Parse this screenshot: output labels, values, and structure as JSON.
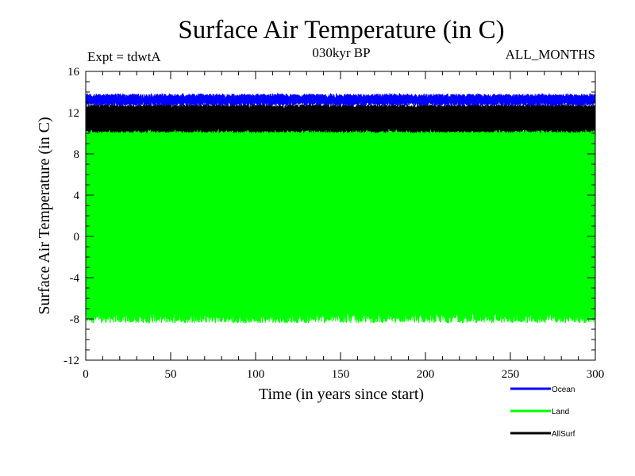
{
  "chart_data": {
    "type": "line",
    "title": "Surface Air Temperature (in C)",
    "subtitle_left": "Expt = tdwtA",
    "subtitle_center": "030kyr BP",
    "subtitle_right": "ALL_MONTHS",
    "xlabel": "Time (in years since start)",
    "ylabel": "Surface Air Temperature (in C)",
    "xlim": [
      0,
      300
    ],
    "ylim": [
      -12,
      16
    ],
    "x_ticks": [
      "0",
      "50",
      "100",
      "150",
      "200",
      "250",
      "300"
    ],
    "y_ticks": [
      "-12",
      "-8",
      "-4",
      "0",
      "4",
      "8",
      "12",
      "16"
    ],
    "series": [
      {
        "name": "Land",
        "color": "#00ff00",
        "monthly_min": -7.8,
        "monthly_max": 10.4,
        "description_range": [
          -8.7,
          11.0
        ]
      },
      {
        "name": "AllSurf",
        "color": "#000000",
        "monthly_min": 10.3,
        "monthly_max": 12.6,
        "description_range": [
          9.6,
          13.0
        ]
      },
      {
        "name": "Ocean",
        "color": "#0000ff",
        "monthly_min": 12.9,
        "monthly_max": 13.6,
        "description_range": [
          12.6,
          14.3
        ]
      }
    ],
    "legend": [
      {
        "label": "Ocean",
        "color": "#0000ff"
      },
      {
        "label": "Land",
        "color": "#00ff00"
      },
      {
        "label": "AllSurf",
        "color": "#000000"
      }
    ],
    "legend_position": "bottom-right"
  }
}
